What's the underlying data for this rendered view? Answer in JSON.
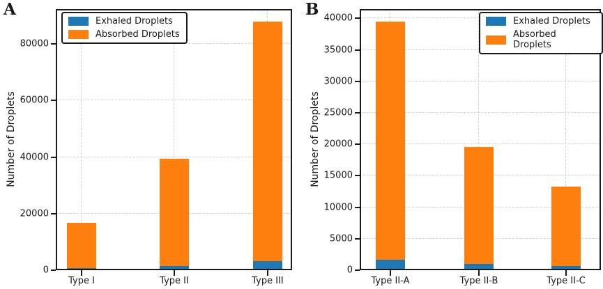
{
  "figure": {
    "background": "#ffffff",
    "text_color": "#1a1a1a",
    "spine_color": "#1a1a1a",
    "grid_color": "#d0d0d0",
    "series_colors": {
      "exhaled": "#1f77b4",
      "absorbed": "#ff7f0e"
    }
  },
  "chart_data": [
    {
      "type": "bar",
      "panel_label": "A",
      "stacked": true,
      "grid": "dashed-both-axes",
      "legend_position": "upper-left",
      "categories": [
        "Type I",
        "Type II",
        "Type III"
      ],
      "series": [
        {
          "name": "Exhaled Droplets",
          "color": "#1f77b4",
          "values": [
            800,
            1600,
            3200
          ]
        },
        {
          "name": "Absorbed Droplets",
          "color": "#ff7f0e",
          "values": [
            16000,
            37900,
            84800
          ]
        }
      ],
      "stack_totals": [
        16800,
        39500,
        88000
      ],
      "xlabel": "",
      "ylabel": "Number of Droplets",
      "ylim": [
        0,
        92400
      ],
      "yticks": [
        0,
        20000,
        40000,
        60000,
        80000
      ],
      "ytick_labels": [
        "0",
        "20000",
        "40000",
        "60000",
        "80000"
      ]
    },
    {
      "type": "bar",
      "panel_label": "B",
      "stacked": true,
      "grid": "dashed-both-axes",
      "legend_position": "upper-right",
      "categories": [
        "Type II-A",
        "Type II-B",
        "Type II-C"
      ],
      "series": [
        {
          "name": "Exhaled Droplets",
          "color": "#1f77b4",
          "values": [
            1700,
            1000,
            700
          ]
        },
        {
          "name": "Absorbed Droplets",
          "color": "#ff7f0e",
          "values": [
            37800,
            18600,
            12600
          ]
        }
      ],
      "stack_totals": [
        39500,
        19600,
        13300
      ],
      "xlabel": "",
      "ylabel": "Number of Droplets",
      "ylim": [
        0,
        41475
      ],
      "yticks": [
        0,
        5000,
        10000,
        15000,
        20000,
        25000,
        30000,
        35000,
        40000
      ],
      "ytick_labels": [
        "0",
        "5000",
        "10000",
        "15000",
        "20000",
        "25000",
        "30000",
        "35000",
        "40000"
      ]
    }
  ]
}
